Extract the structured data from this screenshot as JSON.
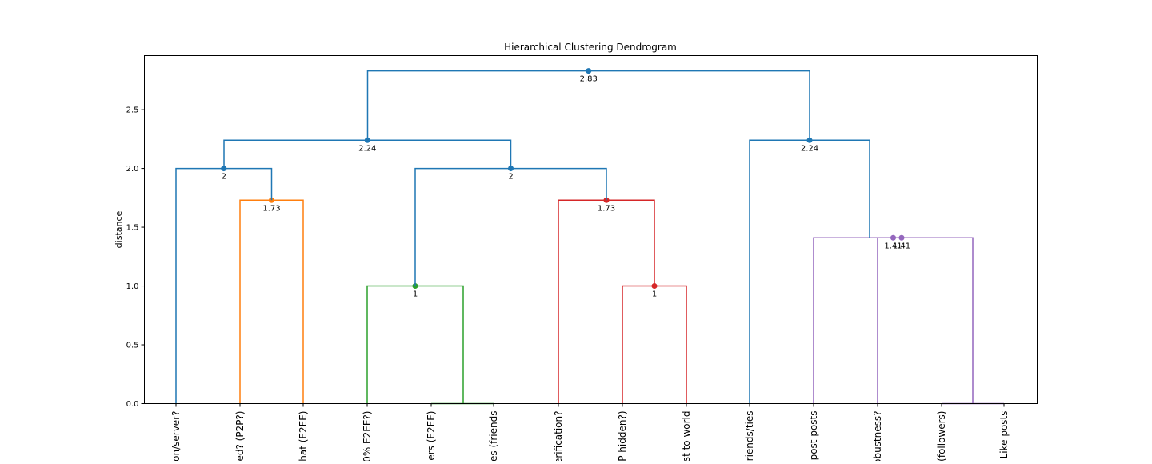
{
  "chart_data": {
    "type": "dendrogram",
    "title": "Hierarchical Clustering Dendrogram",
    "xlabel": "",
    "ylabel": "distance",
    "ylim": [
      0,
      2.96
    ],
    "yticks": [
      0.0,
      0.5,
      1.0,
      1.5,
      2.0,
      2.5
    ],
    "ytick_labels": [
      "0.0",
      "0.5",
      "1.0",
      "1.5",
      "2.0",
      "2.5"
    ],
    "grid": false,
    "leaf_labels": [
      "on/server?",
      "ed? (P2P?)",
      "hat (E2EE)",
      "0% E2EE?)",
      "sers (E2EE)",
      "es (friends",
      "erification?",
      "P hidden?)",
      "st to world",
      "friends/ties",
      "epost posts",
      "obustness?",
      "(followers)",
      "Like posts"
    ],
    "links": [
      {
        "x": [
          300,
          300,
          379,
          379
        ],
        "y": [
          0,
          1.73,
          1.73,
          0
        ],
        "color": "#ff7f0e",
        "label": "1.73"
      },
      {
        "x": [
          220,
          220,
          339.5,
          339.5
        ],
        "y": [
          0,
          2.0,
          2.0,
          1.73
        ],
        "color": "#1f77b4",
        "label": "2"
      },
      {
        "x": [
          459,
          459,
          579,
          579
        ],
        "y": [
          0,
          1.0,
          1.0,
          0
        ],
        "color": "#2ca02c",
        "label": "1"
      },
      {
        "x": [
          539,
          539,
          617,
          617
        ],
        "y": [
          0,
          0,
          0,
          0
        ],
        "color": "#2ca02c",
        "label": ""
      },
      {
        "x": [
          778,
          778,
          858,
          858
        ],
        "y": [
          0,
          1.0,
          1.0,
          0
        ],
        "color": "#d62728",
        "label": "1"
      },
      {
        "x": [
          698,
          698,
          818,
          818
        ],
        "y": [
          0,
          1.73,
          1.73,
          1.0
        ],
        "color": "#d62728",
        "label": "1.73"
      },
      {
        "x": [
          519,
          519,
          758,
          758
        ],
        "y": [
          1.0,
          2.0,
          2.0,
          1.73
        ],
        "color": "#1f77b4",
        "label": "2"
      },
      {
        "x": [
          280,
          280,
          638.5,
          638.5
        ],
        "y": [
          2.0,
          2.24,
          2.24,
          2.0
        ],
        "color": "#1f77b4",
        "label": "2.24"
      },
      {
        "x": [
          1017,
          1017,
          1216,
          1216
        ],
        "y": [
          0,
          1.41,
          1.41,
          0
        ],
        "color": "#9467bd",
        "label": "1.41"
      },
      {
        "x": [
          1097,
          1097,
          1157,
          1157
        ],
        "y": [
          0,
          1.41,
          1.41,
          1.41
        ],
        "color": "#9467bd",
        "label": "1.41"
      },
      {
        "x": [
          1177,
          1177,
          1255,
          1255
        ],
        "y": [
          0,
          0,
          0,
          0
        ],
        "color": "#9467bd",
        "label": ""
      },
      {
        "x": [
          937,
          937,
          1087,
          1087
        ],
        "y": [
          0,
          2.24,
          2.24,
          1.41
        ],
        "color": "#1f77b4",
        "label": "2.24"
      },
      {
        "x": [
          459.5,
          459.5,
          1012,
          1012
        ],
        "y": [
          2.24,
          2.83,
          2.83,
          2.24
        ],
        "color": "#1f77b4",
        "label": "2.83"
      }
    ],
    "leaf_x": [
      220,
      300,
      379,
      459,
      539,
      617,
      698,
      778,
      858,
      937,
      1017,
      1097,
      1177,
      1255
    ]
  }
}
